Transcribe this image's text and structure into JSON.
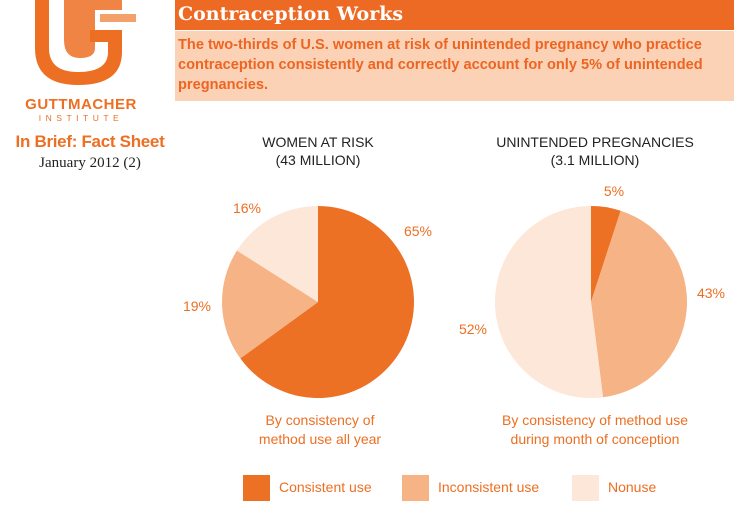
{
  "brand": {
    "name": "GUTTMACHER",
    "subname": "INSTITUTE",
    "sheet_title": "In Brief: Fact Sheet",
    "date": "January 2012 (2)",
    "accent_color": "#ec6f23"
  },
  "header": {
    "title": "Contraception Works",
    "summary": "The two-thirds of U.S. women at risk of unintended pregnancy who practice contraception consistently and correctly account for only 5% of unintended pregnancies."
  },
  "legend": [
    {
      "label": "Consistent use",
      "color": "#ed7125"
    },
    {
      "label": "Inconsistent use",
      "color": "#f6b386"
    },
    {
      "label": "Nonuse",
      "color": "#fde7d8"
    }
  ],
  "chart_data": [
    {
      "type": "pie",
      "title": "WOMEN AT RISK",
      "subtitle": "(43 MILLION)",
      "caption": [
        "By consistency of",
        "method use all year"
      ],
      "categories": [
        "Consistent use",
        "Inconsistent use",
        "Nonuse"
      ],
      "values": [
        65,
        19,
        16
      ],
      "labels": [
        "65%",
        "19%",
        "16%"
      ],
      "colors": [
        "#ed7125",
        "#f6b386",
        "#fde7d8"
      ]
    },
    {
      "type": "pie",
      "title": "UNINTENDED PREGNANCIES",
      "subtitle": "(3.1 MILLION)",
      "caption": [
        "By consistency of method use",
        "during month of conception"
      ],
      "categories": [
        "Consistent use",
        "Inconsistent use",
        "Nonuse"
      ],
      "values": [
        5,
        43,
        52
      ],
      "labels": [
        "5%",
        "43%",
        "52%"
      ],
      "colors": [
        "#ed7125",
        "#f6b386",
        "#fde7d8"
      ]
    }
  ]
}
